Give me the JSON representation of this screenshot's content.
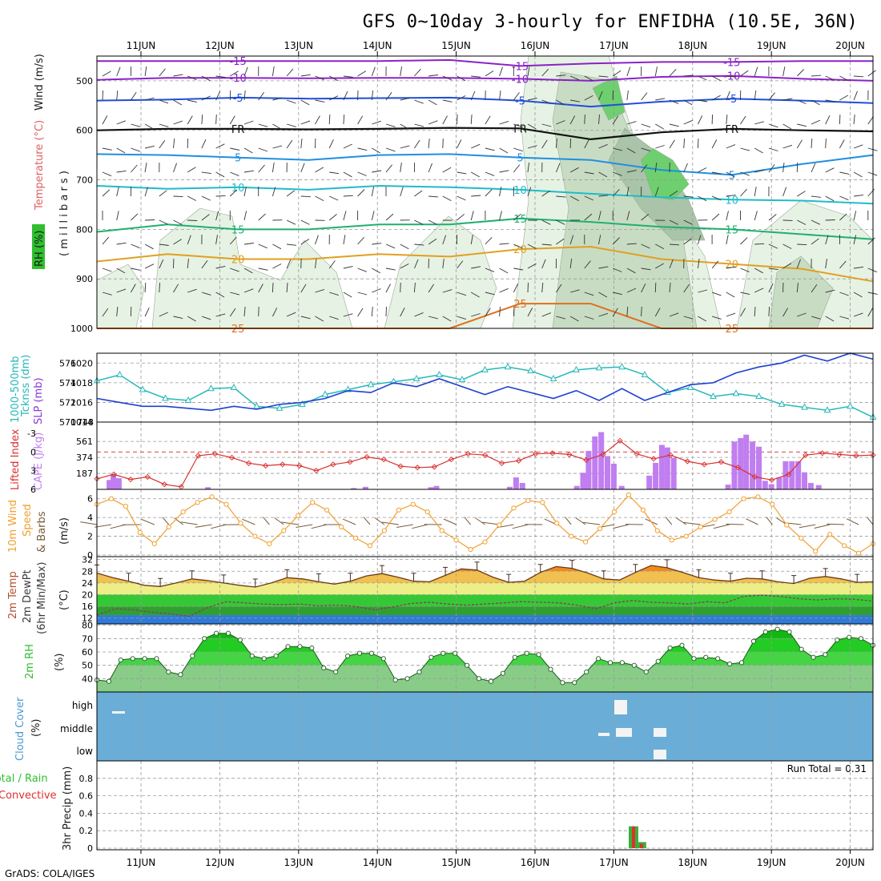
{
  "title": "GFS 0~10day 3-hourly for ENFIDHA (10.5E, 36N)",
  "credit": "GrADS: COLA/IGES",
  "date_ticks": [
    "11JUN",
    "12JUN",
    "13JUN",
    "14JUN",
    "15JUN",
    "16JUN",
    "17JUN",
    "18JUN",
    "19JUN",
    "20JUN"
  ],
  "colors": {
    "grid": "#9a9a9a",
    "temp_contour": "#1f4fd8",
    "thickness": "#26b8b8",
    "slp": "#1f3fd0",
    "lifted_index": "#d83030",
    "cape_bar": "#c07ef0",
    "wind_speed": "#f0a030",
    "barb": "#7a5a3a",
    "cloud_bg": "#6aaed8",
    "rh_green": "#35c835",
    "precip_total": "#3ab03a",
    "precip_conv": "#e03030"
  },
  "panel_labels": {
    "upper": {
      "rh_label": "RH (%)",
      "temp_label": "Temperature (°C)",
      "wind_label": "Wind (m/s)",
      "pressure_label": "( m i l l i b a r s )",
      "y_ticks": [
        "500",
        "600",
        "700",
        "800",
        "900",
        "1000"
      ]
    },
    "thickness_slp": {
      "left_label": "1000-500mb",
      "left_label2": "Tcknss (dm)",
      "right_label": "SLP (mb)",
      "left_ticks": [
        "576",
        "574",
        "572",
        "570"
      ],
      "right_ticks": [
        "1020",
        "1018",
        "1016",
        "1014"
      ]
    },
    "cape": {
      "left_label": "Lifted Index",
      "mid_label": "CAPE (J/kg)",
      "left_ticks": [
        "-3",
        "0",
        "3",
        "6"
      ],
      "right_ticks": [
        "561",
        "374",
        "187"
      ],
      "top_tick": "748"
    },
    "wind": {
      "label1": "10m Wind",
      "label2": "Speed",
      "label3": "& Barbs",
      "unit": "(m/s)",
      "ticks": [
        "6",
        "4",
        "2",
        "0"
      ]
    },
    "temp2m": {
      "label1": "2m Temp",
      "label2": "2m DewPt",
      "label3": "(6hr Min/Max)",
      "unit": "(°C)",
      "ticks": [
        "32",
        "28",
        "24",
        "20",
        "16",
        "12"
      ]
    },
    "rh2m": {
      "label": "2m RH",
      "unit": "(%)",
      "ticks": [
        "80",
        "70",
        "60",
        "50",
        "40"
      ]
    },
    "cloud": {
      "label": "Cloud Cover",
      "unit": "(%)",
      "levels": [
        "high",
        "middle",
        "low"
      ]
    },
    "precip": {
      "label_total": "Total / Rain",
      "label_conv": "Convective",
      "label_unit": "3hr Precip (mm)",
      "run_total": "Run Total = 0.31",
      "ticks": [
        "0.8",
        "0.6",
        "0.4",
        "0.2",
        "0"
      ]
    }
  },
  "chart_data": [
    {
      "type": "line",
      "name": "upper-air cross section",
      "x_dates": [
        "11JUN",
        "12JUN",
        "13JUN",
        "14JUN",
        "15JUN",
        "16JUN",
        "17JUN",
        "18JUN",
        "19JUN",
        "20JUN"
      ],
      "y_axis": "pressure (mb)",
      "ylim": [
        1000,
        450
      ],
      "contours": [
        {
          "value": "-15",
          "pressure": [
            460,
            460,
            460,
            460,
            460,
            458,
            470,
            465,
            462,
            462,
            460,
            460
          ]
        },
        {
          "value": "-10",
          "pressure": [
            498,
            494,
            494,
            495,
            494,
            494,
            496,
            500,
            492,
            490,
            496,
            500
          ]
        },
        {
          "value": "-5",
          "pressure": [
            540,
            538,
            534,
            536,
            535,
            534,
            540,
            552,
            542,
            536,
            540,
            545
          ]
        },
        {
          "value": "FR",
          "pressure": [
            600,
            597,
            597,
            598,
            597,
            595,
            596,
            618,
            604,
            597,
            600,
            602
          ]
        },
        {
          "value": "5",
          "pressure": [
            648,
            650,
            655,
            660,
            650,
            648,
            655,
            660,
            680,
            690,
            668,
            650
          ]
        },
        {
          "value": "10",
          "pressure": [
            712,
            718,
            715,
            720,
            712,
            715,
            720,
            728,
            735,
            740,
            742,
            748
          ]
        },
        {
          "value": "15",
          "pressure": [
            805,
            790,
            800,
            800,
            790,
            790,
            778,
            785,
            795,
            800,
            810,
            820
          ]
        },
        {
          "value": "20",
          "pressure": [
            865,
            850,
            860,
            860,
            850,
            855,
            840,
            835,
            860,
            870,
            880,
            905
          ]
        },
        {
          "value": "25",
          "pressure": [
            1000,
            1000,
            1000,
            1000,
            1000,
            1000,
            950,
            950,
            1000,
            1000,
            1000,
            1000
          ]
        }
      ]
    },
    {
      "type": "line",
      "name": "thickness and SLP",
      "series": [
        {
          "name": "1000-500mb Tcknss (dm)",
          "values": [
            574.2,
            574.8,
            573.3,
            572.4,
            572.2,
            573.4,
            573.5,
            571.6,
            571.4,
            571.8,
            572.8,
            573.3,
            573.8,
            574.1,
            574.4,
            574.8,
            574.3,
            575.3,
            575.6,
            575.2,
            574.4,
            575.3,
            575.5,
            575.6,
            574.8,
            573.0,
            573.5,
            572.6,
            572.9,
            572.6,
            571.8,
            571.5,
            571.2,
            571.6,
            570.5
          ]
        },
        {
          "name": "SLP (mb)",
          "values": [
            1016.4,
            1016.0,
            1015.6,
            1015.6,
            1015.4,
            1015.2,
            1015.6,
            1015.3,
            1015.8,
            1016.0,
            1016.4,
            1017.2,
            1017.0,
            1018.0,
            1017.6,
            1018.4,
            1017.6,
            1016.8,
            1017.6,
            1017.0,
            1016.4,
            1017.2,
            1016.2,
            1017.4,
            1016.2,
            1017.0,
            1017.8,
            1018.0,
            1019.0,
            1019.6,
            1020.0,
            1020.8,
            1020.2,
            1021.0,
            1020.4
          ]
        }
      ],
      "ylim_left": [
        570,
        577
      ],
      "ylim_right": [
        1014,
        1021
      ]
    },
    {
      "type": "bar",
      "name": "CAPE and Lifted Index",
      "cape_bars": [
        [
          0.6,
          110
        ],
        [
          0.65,
          175
        ],
        [
          0.72,
          130
        ],
        [
          1.85,
          25
        ],
        [
          3.7,
          15
        ],
        [
          3.85,
          30
        ],
        [
          4.68,
          25
        ],
        [
          4.75,
          40
        ],
        [
          5.68,
          30
        ],
        [
          5.76,
          140
        ],
        [
          5.84,
          75
        ],
        [
          6.53,
          40
        ],
        [
          6.61,
          195
        ],
        [
          6.68,
          450
        ],
        [
          6.76,
          620
        ],
        [
          6.84,
          670
        ],
        [
          6.92,
          390
        ],
        [
          7.0,
          300
        ],
        [
          7.1,
          40
        ],
        [
          7.45,
          160
        ],
        [
          7.53,
          310
        ],
        [
          7.61,
          520
        ],
        [
          7.68,
          490
        ],
        [
          7.76,
          370
        ],
        [
          8.45,
          55
        ],
        [
          8.53,
          560
        ],
        [
          8.61,
          600
        ],
        [
          8.68,
          640
        ],
        [
          8.76,
          560
        ],
        [
          8.84,
          500
        ],
        [
          8.92,
          100
        ],
        [
          9.0,
          60
        ],
        [
          9.1,
          140
        ],
        [
          9.18,
          330
        ],
        [
          9.26,
          330
        ],
        [
          9.34,
          330
        ],
        [
          9.42,
          200
        ],
        [
          9.5,
          75
        ],
        [
          9.6,
          50
        ]
      ],
      "lifted_index": [
        4.3,
        3.6,
        4.4,
        4.0,
        5.2,
        5.6,
        0.6,
        0.3,
        0.9,
        1.8,
        2.2,
        2.0,
        2.2,
        3.0,
        2.0,
        1.6,
        0.8,
        1.2,
        2.3,
        2.5,
        2.4,
        1.2,
        0.3,
        0.5,
        1.8,
        1.4,
        0.3,
        0.2,
        0.4,
        1.3,
        0.4,
        -1.8,
        0.3,
        1.1,
        0.5,
        1.5,
        2.0,
        1.6,
        2.5,
        4.0,
        4.5,
        3.6,
        0.5,
        0.2,
        0.4,
        0.6,
        0.5
      ]
    },
    {
      "type": "line",
      "name": "10m wind speed",
      "values": [
        5.4,
        6.0,
        5.2,
        2.4,
        1.2,
        3.0,
        4.6,
        5.6,
        6.2,
        5.4,
        3.4,
        2.0,
        1.2,
        2.6,
        4.2,
        5.6,
        4.8,
        3.0,
        1.8,
        1.0,
        2.6,
        4.8,
        5.4,
        4.6,
        2.6,
        1.6,
        0.6,
        1.4,
        3.2,
        5.0,
        5.8,
        5.6,
        3.4,
        2.0,
        1.4,
        2.8,
        4.6,
        6.4,
        4.8,
        2.6,
        1.6,
        2.0,
        3.0,
        3.8,
        4.6,
        6.0,
        6.2,
        5.4,
        3.2,
        1.8,
        0.4,
        2.2,
        1.0,
        0.2,
        1.2
      ]
    },
    {
      "type": "area",
      "name": "2m temperature and dewpoint",
      "temperature": [
        27.4,
        25.8,
        24.6,
        23.2,
        22.8,
        24.0,
        25.4,
        24.8,
        24.0,
        23.2,
        22.6,
        24.0,
        25.8,
        25.4,
        24.4,
        23.6,
        24.6,
        26.4,
        27.2,
        26.0,
        24.6,
        24.4,
        26.6,
        28.8,
        28.4,
        26.0,
        24.2,
        24.6,
        27.6,
        29.6,
        29.0,
        27.4,
        25.4,
        25.0,
        27.6,
        30.0,
        29.2,
        27.6,
        25.8,
        25.0,
        24.6,
        25.6,
        25.4,
        24.4,
        23.8,
        25.6,
        26.2,
        25.4,
        24.2,
        24.4
      ],
      "dewpoint": [
        13.0,
        15.2,
        14.8,
        14.0,
        13.4,
        12.6,
        15.6,
        17.6,
        17.2,
        16.8,
        16.6,
        16.8,
        16.2,
        16.4,
        16.0,
        14.8,
        15.8,
        17.0,
        17.4,
        16.8,
        16.4,
        16.8,
        17.2,
        17.6,
        17.4,
        17.2,
        16.4,
        15.2,
        17.2,
        18.0,
        17.4,
        17.2,
        16.8,
        17.6,
        17.2,
        19.4,
        19.8,
        19.4,
        18.6,
        18.2,
        18.6,
        18.4,
        17.8
      ],
      "ylim": [
        10,
        33
      ]
    },
    {
      "type": "area",
      "name": "2m RH",
      "values": [
        39,
        38,
        54,
        55,
        55,
        55,
        45,
        43,
        57,
        70,
        74,
        74,
        69,
        57,
        55,
        57,
        64,
        64,
        63,
        48,
        45,
        57,
        59,
        59,
        55,
        39,
        40,
        45,
        56,
        59,
        59,
        50,
        40,
        38,
        44,
        56,
        59,
        58,
        47,
        37,
        37,
        45,
        55,
        52,
        52,
        50,
        45,
        53,
        63,
        65,
        55,
        56,
        55,
        51,
        52,
        68,
        75,
        77,
        75,
        62,
        56,
        58,
        69,
        71,
        70,
        65
      ],
      "ylim": [
        30,
        81
      ]
    },
    {
      "type": "bar",
      "name": "3hr precip",
      "total": [
        [
          7.25,
          0.25
        ],
        [
          7.35,
          0.07
        ]
      ],
      "convective": [
        [
          7.25,
          0.25
        ],
        [
          7.35,
          0.05
        ]
      ],
      "ylim": [
        0,
        1
      ]
    }
  ]
}
